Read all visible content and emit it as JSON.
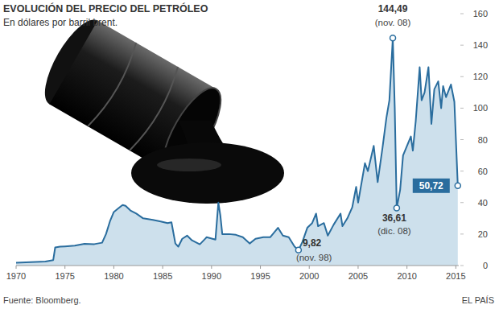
{
  "chart_data": {
    "type": "area",
    "title": "EVOLUCIÓN DEL PRECIO DEL PETRÓLEO",
    "subtitle": "En dólares por barril brent.",
    "source": "Fuente: Bloomberg.",
    "publisher": "EL PAÍS",
    "color": "#2a6d9e",
    "grid": false,
    "x": [
      1970,
      1971,
      1972,
      1973,
      1973.8,
      1974,
      1974.5,
      1975,
      1976,
      1977,
      1978,
      1978.8,
      1979.2,
      1979.6,
      1980,
      1980.4,
      1980.9,
      1981.2,
      1981.7,
      1982.3,
      1983,
      1983.5,
      1984,
      1984.8,
      1985.5,
      1985.9,
      1986.3,
      1986.6,
      1987,
      1987.5,
      1988,
      1988.8,
      1989.5,
      1990.4,
      1990.7,
      1990.9,
      1991.1,
      1991.8,
      1992.5,
      1993.2,
      1993.9,
      1994.5,
      1995.3,
      1996,
      1996.8,
      1997.3,
      1997.9,
      1998.5,
      1998.9,
      1999.3,
      1999.8,
      2000.3,
      2000.7,
      2000.9,
      2001.5,
      2001.9,
      2002.5,
      2003.2,
      2003.4,
      2003.9,
      2004.4,
      2004.8,
      2005,
      2005.7,
      2006,
      2006.6,
      2007,
      2007.5,
      2007.9,
      2008.2,
      2008.55,
      2008.75,
      2008.95,
      2009.3,
      2009.6,
      2010,
      2010.4,
      2010.6,
      2010.9,
      2011.3,
      2011.5,
      2011.8,
      2012.2,
      2012.5,
      2012.8,
      2013.2,
      2013.5,
      2013.7,
      2014,
      2014.5,
      2014.85,
      2015.2
    ],
    "values": [
      1.8,
      2.0,
      2.3,
      2.6,
      3.5,
      11.5,
      12,
      12.2,
      12.6,
      13.8,
      13.6,
      14.5,
      20,
      28,
      34,
      36,
      38.5,
      38,
      35,
      33,
      30,
      29.5,
      29,
      28,
      27,
      27.5,
      14,
      12,
      17,
      19,
      16,
      13.5,
      18,
      16.5,
      40,
      32,
      20,
      20,
      19.5,
      18,
      14,
      17,
      18,
      18,
      24,
      19,
      18,
      12,
      9.82,
      15,
      24,
      27,
      33,
      25,
      27,
      19,
      26,
      33,
      25,
      30,
      37,
      50,
      40,
      65,
      60,
      76,
      53,
      75,
      94,
      105,
      144.49,
      100,
      36.61,
      48,
      70,
      76,
      82,
      73,
      92,
      126,
      105,
      110,
      126,
      90,
      112,
      117,
      100,
      114,
      107,
      115,
      104,
      50.72
    ],
    "xlim": [
      1970,
      2015.3
    ],
    "xticks": [
      1970,
      1975,
      1980,
      1985,
      1990,
      1995,
      2000,
      2005,
      2010,
      2015
    ],
    "ylim": [
      0,
      160
    ],
    "yticks": [
      0,
      20,
      40,
      60,
      80,
      100,
      120,
      140,
      160
    ],
    "annotations": [
      {
        "x": 2008.55,
        "y": 144.49,
        "label": "144,49",
        "date": "(nov. 08)"
      },
      {
        "x": 2008.95,
        "y": 36.61,
        "label": "36,61",
        "date": "(dic. 08)"
      },
      {
        "x": 1998.9,
        "y": 9.82,
        "label": "9,82",
        "date": "(nov. 98)"
      },
      {
        "x": 2015.2,
        "y": 50.72,
        "label": "50,72"
      }
    ]
  }
}
